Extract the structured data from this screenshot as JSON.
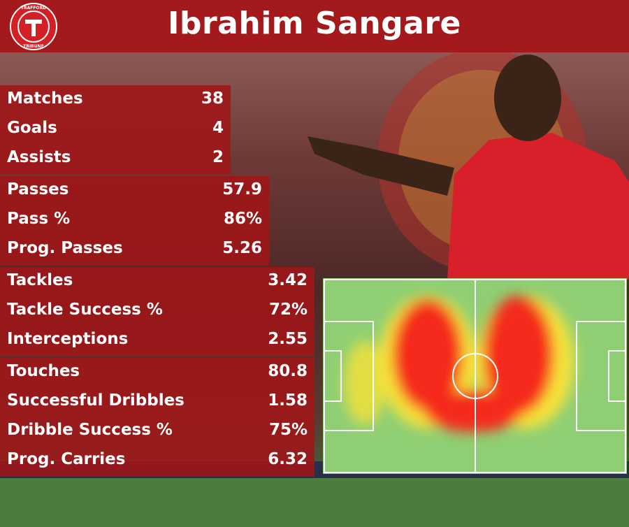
{
  "header": {
    "title": "Ibrahim Sangare",
    "logo_top": "TRAFFORD",
    "logo_bottom": "TRIBUNE"
  },
  "stat_groups": [
    {
      "rows": [
        [
          "Matches",
          "38"
        ],
        [
          "Goals",
          "4"
        ],
        [
          "Assists",
          "2"
        ]
      ]
    },
    {
      "rows": [
        [
          "Passes",
          "57.9"
        ],
        [
          "Pass %",
          "86%"
        ],
        [
          "Prog. Passes",
          "5.26"
        ]
      ]
    },
    {
      "rows": [
        [
          "Tackles",
          "3.42"
        ],
        [
          "Tackle Success %",
          "72%"
        ],
        [
          "Interceptions",
          "2.55"
        ]
      ]
    },
    {
      "rows": [
        [
          "Touches",
          "80.8"
        ],
        [
          "Successful Dribbles",
          "1.58"
        ],
        [
          "Dribble Success %",
          "75%"
        ],
        [
          "Prog. Carries",
          "6.32"
        ]
      ]
    }
  ]
}
